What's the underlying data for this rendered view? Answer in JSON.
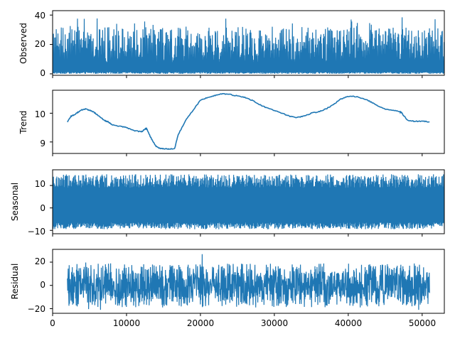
{
  "chart_data": [
    {
      "type": "line",
      "ylabel": "Observed",
      "xlim": [
        0,
        53000
      ],
      "ylim": [
        -1,
        43
      ],
      "yticks": [
        0,
        20,
        40
      ],
      "xticks": [
        0,
        10000,
        20000,
        30000,
        40000,
        50000
      ],
      "x_range": [
        0,
        53000
      ],
      "approx_value_range": [
        0,
        41
      ],
      "series": [
        {
          "color": "#1f77b4"
        }
      ]
    },
    {
      "type": "line",
      "ylabel": "Trend",
      "xlim": [
        0,
        53000
      ],
      "ylim": [
        8.6,
        10.8
      ],
      "yticks": [
        9,
        10
      ],
      "xticks": [
        0,
        10000,
        20000,
        30000,
        40000,
        50000
      ],
      "series": [
        {
          "color": "#1f77b4",
          "x": [
            2000,
            2500,
            3000,
            3500,
            4000,
            4500,
            5000,
            5500,
            6000,
            6500,
            7000,
            7500,
            8000,
            9000,
            10000,
            11000,
            12000,
            12500,
            12700,
            13000,
            13500,
            14000,
            14500,
            15000,
            15500,
            16000,
            16500,
            17000,
            18000,
            19000,
            20000,
            21000,
            22000,
            23000,
            24000,
            25000,
            26000,
            27000,
            28000,
            29000,
            30000,
            31000,
            32000,
            33000,
            34000,
            35000,
            36000,
            37000,
            38000,
            39000,
            40000,
            41000,
            42000,
            43000,
            44000,
            45000,
            46000,
            47000,
            47200,
            48000,
            49000,
            50000,
            51000
          ],
          "y": [
            9.7,
            9.9,
            9.95,
            10.05,
            10.12,
            10.15,
            10.1,
            10.05,
            9.95,
            9.85,
            9.75,
            9.7,
            9.6,
            9.55,
            9.5,
            9.4,
            9.35,
            9.45,
            9.48,
            9.3,
            9.05,
            8.85,
            8.78,
            8.76,
            8.76,
            8.76,
            8.76,
            9.25,
            9.75,
            10.1,
            10.45,
            10.55,
            10.62,
            10.68,
            10.65,
            10.6,
            10.55,
            10.45,
            10.3,
            10.18,
            10.1,
            10.0,
            9.9,
            9.85,
            9.9,
            10.0,
            10.05,
            10.15,
            10.3,
            10.5,
            10.58,
            10.58,
            10.52,
            10.4,
            10.25,
            10.15,
            10.1,
            10.05,
            10.02,
            9.75,
            9.72,
            9.72,
            9.7
          ]
        }
      ]
    },
    {
      "type": "line",
      "ylabel": "Seasonal",
      "xlim": [
        0,
        53000
      ],
      "ylim": [
        -11.5,
        17
      ],
      "yticks": [
        -10,
        0,
        10
      ],
      "xticks": [
        0,
        10000,
        20000,
        30000,
        40000,
        50000
      ],
      "x_range": [
        0,
        53000
      ],
      "approx_value_range": [
        -10,
        15
      ],
      "series": [
        {
          "color": "#1f77b4"
        }
      ]
    },
    {
      "type": "line",
      "ylabel": "Residual",
      "xlim": [
        0,
        53000
      ],
      "ylim": [
        -24,
        31
      ],
      "yticks": [
        -20,
        0,
        20
      ],
      "xticks": [
        0,
        10000,
        20000,
        30000,
        40000,
        50000
      ],
      "x_range": [
        2000,
        51000
      ],
      "approx_value_range": [
        -21,
        28
      ],
      "series": [
        {
          "color": "#1f77b4"
        }
      ]
    }
  ],
  "labels": {
    "xticks": [
      "0",
      "10000",
      "20000",
      "30000",
      "40000",
      "50000"
    ],
    "panels": [
      {
        "ylabel": "Observed",
        "yticks": [
          "0",
          "20",
          "40"
        ]
      },
      {
        "ylabel": "Trend",
        "yticks": [
          "9",
          "10"
        ]
      },
      {
        "ylabel": "Seasonal",
        "yticks": [
          "−10",
          "0",
          "10"
        ]
      },
      {
        "ylabel": "Residual",
        "yticks": [
          "−20",
          "0",
          "20"
        ]
      }
    ]
  }
}
